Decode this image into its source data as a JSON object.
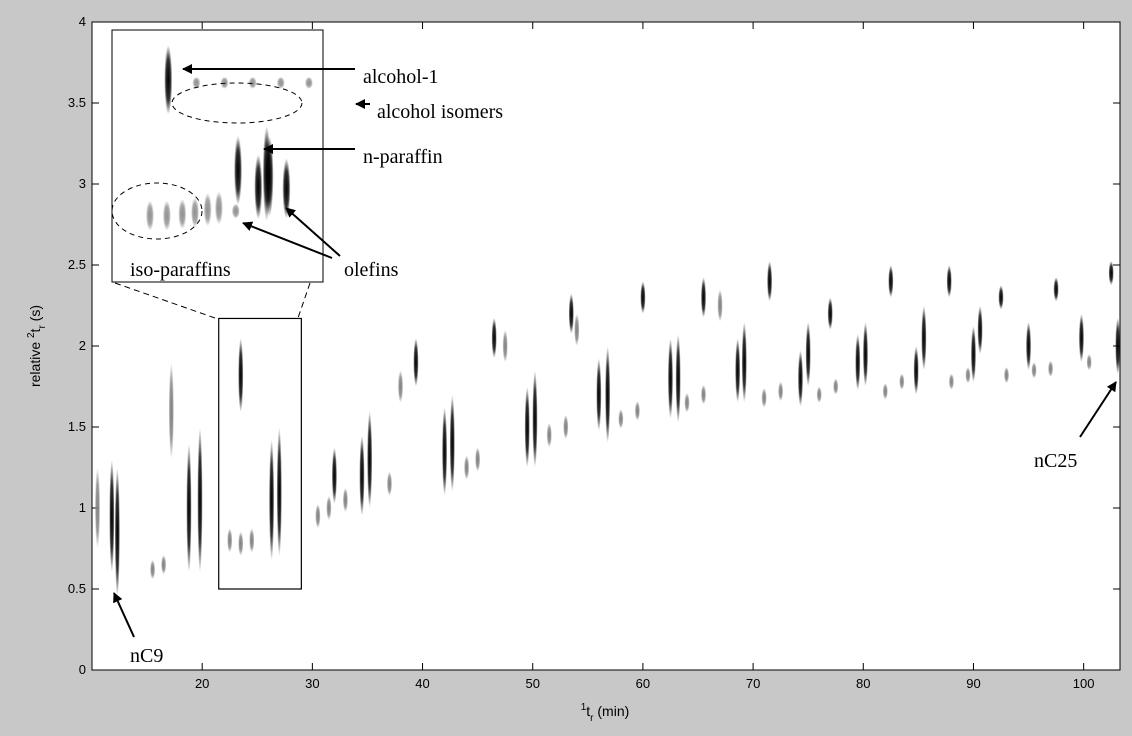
{
  "chart_data": [
    {
      "type": "peaks",
      "xlim": [
        10,
        103.3
      ],
      "ylim": [
        0,
        4
      ],
      "xticks": [
        20,
        30,
        40,
        50,
        60,
        70,
        80,
        90,
        100
      ],
      "yticks": [
        0,
        0.5,
        1,
        1.5,
        2,
        2.5,
        3,
        3.5,
        4
      ],
      "xlabel": {
        "sup": "1",
        "base": "t",
        "sub": "r",
        "rest": " (min)"
      },
      "ylabel": {
        "pre": "relative ",
        "sup": "2",
        "base": "t",
        "sub": "r",
        "rest": " (s)"
      },
      "annotations": [
        "nC9",
        "nC25"
      ],
      "series": [
        {
          "color": "#000000",
          "x": [
            11.8,
            12.3,
            18.8,
            19.8,
            23.5,
            26.3,
            27.0,
            32.0,
            34.5,
            35.2,
            39.4,
            42.0,
            42.7,
            46.5,
            49.5,
            50.2,
            53.5,
            56.0,
            56.8,
            60.0,
            62.5,
            63.2,
            65.5,
            68.6,
            69.2,
            71.5,
            74.3,
            75.0,
            77.0,
            79.5,
            80.2,
            82.5,
            84.8,
            85.5,
            87.8,
            90.0,
            90.6,
            92.5,
            95.0,
            97.5,
            99.8,
            102.5,
            103.1
          ],
          "values": [
            0.95,
            0.85,
            1.0,
            1.05,
            1.82,
            1.05,
            1.1,
            1.2,
            1.2,
            1.3,
            1.9,
            1.35,
            1.4,
            2.05,
            1.5,
            1.55,
            2.2,
            1.7,
            1.7,
            2.3,
            1.8,
            1.8,
            2.3,
            1.85,
            1.9,
            2.4,
            1.8,
            1.95,
            2.2,
            1.9,
            1.95,
            2.4,
            1.85,
            2.05,
            2.4,
            1.95,
            2.1,
            2.3,
            2.0,
            2.35,
            2.05,
            2.45,
            2.0
          ],
          "heights": [
            0.7,
            0.8,
            0.8,
            0.9,
            0.46,
            0.75,
            0.8,
            0.35,
            0.5,
            0.6,
            0.3,
            0.55,
            0.6,
            0.25,
            0.5,
            0.6,
            0.25,
            0.45,
            0.6,
            0.2,
            0.5,
            0.55,
            0.25,
            0.4,
            0.5,
            0.25,
            0.35,
            0.4,
            0.2,
            0.35,
            0.4,
            0.2,
            0.3,
            0.4,
            0.2,
            0.35,
            0.3,
            0.15,
            0.3,
            0.15,
            0.3,
            0.15,
            0.35
          ]
        },
        {
          "color": "#808080",
          "x": [
            10.5,
            15.5,
            16.5,
            17.2,
            22.5,
            23.5,
            24.5,
            30.5,
            31.5,
            33.0,
            37.0,
            38.0,
            44.0,
            45.0,
            47.5,
            51.5,
            53.0,
            54.0,
            58.0,
            59.5,
            64.0,
            65.5,
            67.0,
            71.0,
            72.5,
            76.0,
            77.5,
            82.0,
            83.5,
            88.0,
            89.5,
            93.0,
            95.5,
            97.0,
            100.5
          ],
          "values": [
            1.0,
            0.62,
            0.65,
            1.6,
            0.8,
            0.78,
            0.8,
            0.95,
            1.0,
            1.05,
            1.15,
            1.75,
            1.25,
            1.3,
            2.0,
            1.45,
            1.5,
            2.1,
            1.55,
            1.6,
            1.65,
            1.7,
            2.25,
            1.68,
            1.72,
            1.7,
            1.75,
            1.72,
            1.78,
            1.78,
            1.82,
            1.82,
            1.85,
            1.86,
            1.9
          ],
          "heights": [
            0.5,
            0.12,
            0.12,
            0.6,
            0.15,
            0.15,
            0.15,
            0.15,
            0.15,
            0.15,
            0.15,
            0.2,
            0.15,
            0.15,
            0.2,
            0.15,
            0.15,
            0.2,
            0.12,
            0.12,
            0.12,
            0.12,
            0.2,
            0.12,
            0.12,
            0.1,
            0.1,
            0.1,
            0.1,
            0.1,
            0.1,
            0.1,
            0.1,
            0.1,
            0.1
          ]
        }
      ]
    },
    {
      "type": "peaks",
      "xlim": [
        21.5,
        29
      ],
      "ylim": [
        0.5,
        2.17
      ],
      "annotations": [
        "alcohol-1",
        "alcohol isomers",
        "n-paraffin",
        "olefins",
        "iso-paraffins"
      ],
      "series": [
        {
          "color": "#000000",
          "x": [
            23.5,
            25.98,
            26.7,
            27.0,
            27.1,
            27.7
          ],
          "values": [
            1.84,
            1.24,
            1.13,
            1.22,
            1.2,
            1.12
          ],
          "heights": [
            0.46,
            0.46,
            0.43,
            0.63,
            0.53,
            0.4
          ]
        },
        {
          "color": "#909090",
          "x": [
            22.85,
            23.45,
            24.0,
            24.45,
            24.9,
            25.3,
            25.9,
            24.5,
            25.5,
            26.5,
            27.5,
            28.5
          ],
          "values": [
            0.94,
            0.94,
            0.95,
            0.96,
            0.98,
            0.99,
            0.97,
            1.82,
            1.82,
            1.82,
            1.82,
            1.82
          ],
          "heights": [
            0.2,
            0.2,
            0.2,
            0.2,
            0.22,
            0.22,
            0.1,
            0.08,
            0.08,
            0.08,
            0.08,
            0.08
          ]
        }
      ]
    }
  ]
}
